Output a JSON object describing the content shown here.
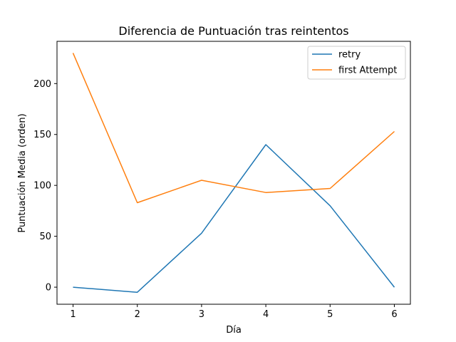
{
  "chart_data": {
    "type": "line",
    "title": "Diferencia de Puntuación tras reintentos",
    "xlabel": "Día",
    "ylabel": "Puntuación Media (orden)",
    "x": [
      1,
      2,
      3,
      4,
      5,
      6
    ],
    "xlim": [
      0.75,
      6.25
    ],
    "ylim": [
      -16.75,
      241.5
    ],
    "xticks": [
      1,
      2,
      3,
      4,
      5,
      6
    ],
    "yticks": [
      0,
      50,
      100,
      150,
      200
    ],
    "grid": false,
    "legend_position": "upper right",
    "series": [
      {
        "name": "retry",
        "color": "#1f77b4",
        "values": [
          0,
          -5,
          53,
          140,
          80,
          0
        ]
      },
      {
        "name": "first Attempt",
        "color": "#ff7f0e",
        "values": [
          230,
          83,
          105,
          93,
          97,
          153
        ]
      }
    ]
  }
}
